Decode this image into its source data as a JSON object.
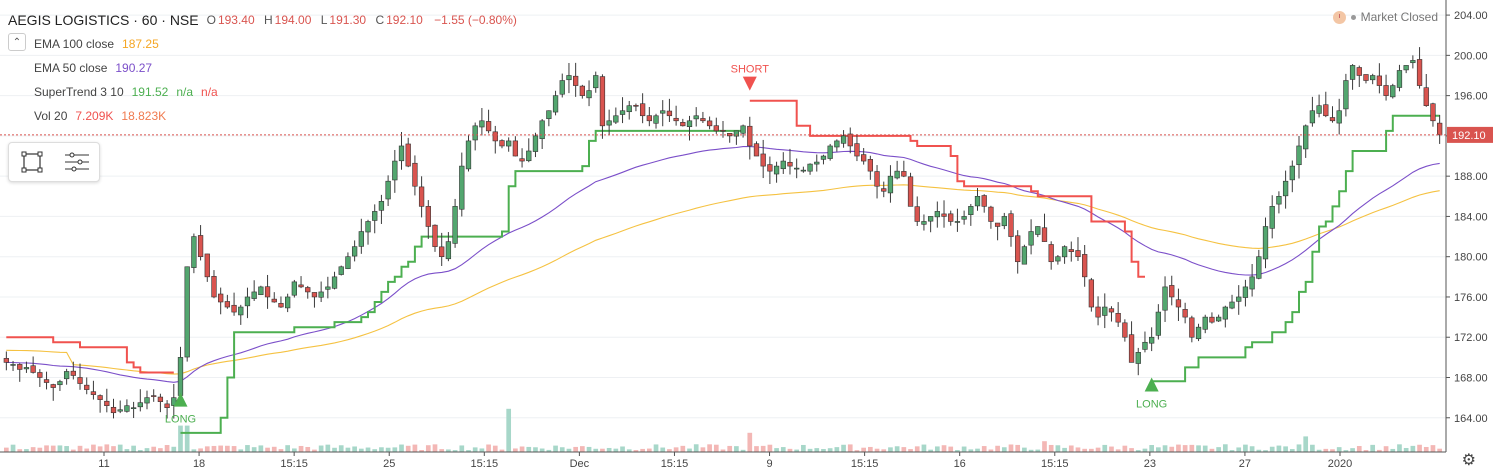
{
  "header": {
    "symbol": "AEGIS LOGISTICS · 60 · NSE",
    "open_label": "O",
    "open": "193.40",
    "high_label": "H",
    "high": "194.00",
    "low_label": "L",
    "low": "191.30",
    "close_label": "C",
    "close": "192.10",
    "change": "−1.55 (−0.80%)"
  },
  "indicators": [
    {
      "name": "EMA 100 close",
      "values": [
        "187.25"
      ],
      "colors": [
        "#f5a623"
      ]
    },
    {
      "name": "EMA 50 close",
      "values": [
        "190.27"
      ],
      "colors": [
        "#7b4fc9"
      ]
    },
    {
      "name": "SuperTrend 3 10",
      "values": [
        "191.52",
        "n/a",
        "n/a"
      ],
      "colors": [
        "#4caf50",
        "#4caf50",
        "#f0524f"
      ]
    },
    {
      "name": "Vol 20",
      "values": [
        "7.209K",
        "18.823K"
      ],
      "colors": [
        "#f0524f",
        "#f07a4f"
      ]
    }
  ],
  "status": {
    "text": "Market Closed"
  },
  "icons": {
    "collapse": "chevron-up-icon",
    "rect_tool": "rectangle-tool-icon",
    "lines_tool": "lines-tool-icon",
    "settings": "gear-icon"
  },
  "colors": {
    "up": "#53a66f",
    "down": "#d9544f",
    "supertrend_up": "#4caf50",
    "supertrend_down": "#f0524f",
    "ema100": "#f5c242",
    "ema50": "#7b4fc9"
  },
  "chart_data": {
    "type": "candlestick",
    "x_tick_labels": [
      "11",
      "18",
      "15:15",
      "25",
      "15:15",
      "Dec",
      "15:15",
      "9",
      "15:15",
      "16",
      "15:15",
      "23",
      "27",
      "2020"
    ],
    "y_axis": {
      "ticks": [
        164,
        168,
        172,
        176,
        180,
        184,
        188,
        192,
        196,
        200,
        204
      ],
      "range": [
        160.6,
        205.3
      ]
    },
    "last_price": "192.10",
    "annotations": [
      {
        "text": "LONG",
        "type": "buy",
        "bar": 26,
        "price": 166.5
      },
      {
        "text": "SHORT",
        "type": "sell",
        "bar": 111,
        "price": 196.5
      },
      {
        "text": "LONG",
        "type": "buy",
        "bar": 171,
        "price": 168.0
      }
    ],
    "closes": [
      169.5,
      169.3,
      168.8,
      169.0,
      168.5,
      168.0,
      167.5,
      167.0,
      167.6,
      168.6,
      168.2,
      167.4,
      166.8,
      166.3,
      165.8,
      165.2,
      164.5,
      164.8,
      165.2,
      165.0,
      165.5,
      166.0,
      166.2,
      165.6,
      165.0,
      166.0,
      170.0,
      179.0,
      182.0,
      180.0,
      178.0,
      176.0,
      175.5,
      175.0,
      174.5,
      175.0,
      176.0,
      176.5,
      177.0,
      176.0,
      175.5,
      175.0,
      176.0,
      177.5,
      177.0,
      176.5,
      176.0,
      176.5,
      177.0,
      178.0,
      179.0,
      180.0,
      181.0,
      182.5,
      183.5,
      184.5,
      185.5,
      187.5,
      189.5,
      191.0,
      189.0,
      187.0,
      185.0,
      183.0,
      181.0,
      180.0,
      181.5,
      185.0,
      189.0,
      191.5,
      193.0,
      193.5,
      192.5,
      191.5,
      191.0,
      191.5,
      190.0,
      189.5,
      190.5,
      192.0,
      193.5,
      194.5,
      196.0,
      197.5,
      198.0,
      197.0,
      196.0,
      196.5,
      198.0,
      193.0,
      193.5,
      194.0,
      194.5,
      195.0,
      195.0,
      194.0,
      193.5,
      194.0,
      194.5,
      194.0,
      193.5,
      193.0,
      193.5,
      194.0,
      193.5,
      193.0,
      192.5,
      192.5,
      192.0,
      192.5,
      193.0,
      191.0,
      190.0,
      189.0,
      188.5,
      189.0,
      189.5,
      189.0,
      188.8,
      188.6,
      189.2,
      189.4,
      190.0,
      191.0,
      191.5,
      192.0,
      191.0,
      190.0,
      189.5,
      188.5,
      187.0,
      186.5,
      188.0,
      188.5,
      188.0,
      185.0,
      183.5,
      183.5,
      184.0,
      184.5,
      184.0,
      183.5,
      183.5,
      184.0,
      185.0,
      186.0,
      185.0,
      183.5,
      183.0,
      184.0,
      182.0,
      179.5,
      181.0,
      182.5,
      183.0,
      181.5,
      179.5,
      180.0,
      181.0,
      180.5,
      180.0,
      178.0,
      175.0,
      174.0,
      175.0,
      174.5,
      173.5,
      172.0,
      169.5,
      170.5,
      171.5,
      172.0,
      174.5,
      177.0,
      176.0,
      175.0,
      174.0,
      172.0,
      173.0,
      174.0,
      173.5,
      174.0,
      175.0,
      175.5,
      176.0,
      177.0,
      178.0,
      180.0,
      183.0,
      185.0,
      186.0,
      187.5,
      189.0,
      191.0,
      193.0,
      194.5,
      195.0,
      194.0,
      193.5,
      194.5,
      197.5,
      199.0,
      198.0,
      197.5,
      198.0,
      197.0,
      196.0,
      197.0,
      198.5,
      199.0,
      199.5,
      197.0,
      195.0,
      193.5,
      192.1
    ]
  }
}
